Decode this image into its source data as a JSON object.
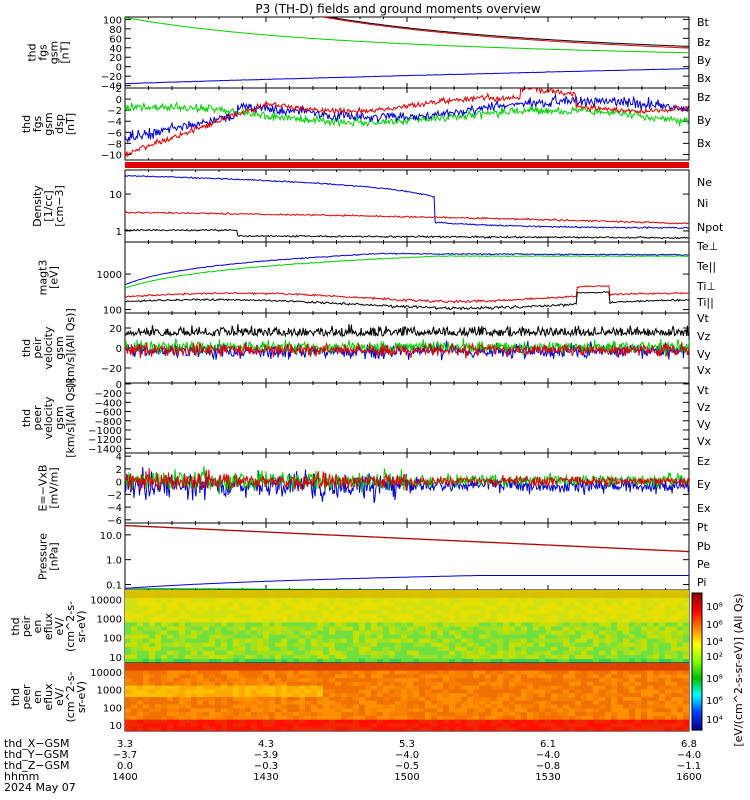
{
  "title": "P3 (TH-D) fields and ground moments overview",
  "colors": {
    "black": "#000000",
    "red": "#e00000",
    "green": "#00d000",
    "blue": "#0000d0"
  },
  "chart_data": [
    {
      "type": "line",
      "ylabel": [
        "thd",
        "fgs",
        "gsm",
        "[nT]"
      ],
      "yticks": [
        "100",
        "80",
        "60",
        "40",
        "20",
        "0",
        "−20",
        "−40"
      ],
      "ylim": [
        -45,
        105
      ],
      "series": [
        {
          "name": "Bt",
          "color": "black"
        },
        {
          "name": "Bz",
          "color": "red"
        },
        {
          "name": "By",
          "color": "green"
        },
        {
          "name": "Bx",
          "color": "blue"
        }
      ]
    },
    {
      "type": "line",
      "ylabel": [
        "thd",
        "fgs",
        "gsm",
        "dsp",
        "[nT]"
      ],
      "yticks": [
        "2",
        "0",
        "−2",
        "−4",
        "−6",
        "−8",
        "−10"
      ],
      "ylim": [
        -11,
        2
      ],
      "series": [
        {
          "name": "Bz",
          "color": "red"
        },
        {
          "name": "By",
          "color": "green"
        },
        {
          "name": "Bx",
          "color": "blue"
        }
      ]
    },
    {
      "type": "bar",
      "ylabel": [],
      "yticks": [],
      "series": []
    },
    {
      "type": "line",
      "ylabel": [
        "Density",
        "[1/cc]",
        "[cm−3]"
      ],
      "yticks": [
        "10",
        "1"
      ],
      "log": true,
      "series": [
        {
          "name": "Ne",
          "color": "red"
        },
        {
          "name": "Ni",
          "color": "black"
        },
        {
          "name": "Npot",
          "color": "blue"
        }
      ]
    },
    {
      "type": "line",
      "ylabel": [
        "magt3",
        "[eV]"
      ],
      "yticks": [
        "1000",
        "100"
      ],
      "log": true,
      "series": [
        {
          "name": "Te⊥",
          "color": "red"
        },
        {
          "name": "Te||",
          "color": "black"
        },
        {
          "name": "Ti⊥",
          "color": "red"
        },
        {
          "name": "Ti||",
          "color": "green"
        }
      ]
    },
    {
      "type": "line",
      "ylabel": [
        "thd",
        "peir",
        "velocity",
        "gsm",
        "[km/s](All Qs)]"
      ],
      "yticks": [
        "20",
        "0",
        "−20"
      ],
      "ylim": [
        -35,
        35
      ],
      "series": [
        {
          "name": "Vt",
          "color": "black"
        },
        {
          "name": "Vz",
          "color": "red"
        },
        {
          "name": "Vy",
          "color": "green"
        },
        {
          "name": "Vx",
          "color": "blue"
        }
      ]
    },
    {
      "type": "line",
      "ylabel": [
        "thd",
        "peer",
        "velocity",
        "gsm",
        "[km/s](All Qs)]"
      ],
      "yticks": [
        "0",
        "−200",
        "−400",
        "−600",
        "−800",
        "−1000",
        "−1200",
        "−1400"
      ],
      "ylim": [
        -1500,
        20
      ],
      "series": [
        {
          "name": "Vt",
          "color": "black"
        },
        {
          "name": "Vz",
          "color": "red"
        },
        {
          "name": "Vy",
          "color": "green"
        },
        {
          "name": "Vx",
          "color": "blue"
        }
      ]
    },
    {
      "type": "line",
      "ylabel": [
        "E=−VxB",
        "[mV/m]"
      ],
      "yticks": [
        "4",
        "2",
        "0",
        "−2",
        "−4",
        "−6"
      ],
      "ylim": [
        -6.5,
        4.5
      ],
      "series": [
        {
          "name": "Ez",
          "color": "red"
        },
        {
          "name": "Ey",
          "color": "green"
        },
        {
          "name": "Ex",
          "color": "blue"
        }
      ]
    },
    {
      "type": "line",
      "ylabel": [
        "Pressure",
        "[nPa]"
      ],
      "yticks": [
        "10.0",
        "1.0",
        "0.1"
      ],
      "log": true,
      "series": [
        {
          "name": "Pt",
          "color": "black"
        },
        {
          "name": "Pb",
          "color": "red"
        },
        {
          "name": "Pe",
          "color": "green"
        },
        {
          "name": "Pi",
          "color": "blue"
        }
      ]
    },
    {
      "type": "heatmap",
      "ylabel": [
        "thd",
        "peir",
        "en",
        "eflux",
        "eV/",
        "(cm^2-s-",
        "sr-eV)"
      ],
      "yticks": [
        "10000",
        "1000",
        "100",
        "10"
      ]
    },
    {
      "type": "heatmap",
      "ylabel": [
        "thd",
        "peer",
        "en",
        "eflux",
        "eV/",
        "(cm^2-s-",
        "sr-eV)"
      ],
      "yticks": [
        "10000",
        "1000",
        "100",
        "10"
      ]
    }
  ],
  "colorbar": {
    "label": "[eV/(cm^2-s-sr-eV)] (All Qs)",
    "ticks_top": [
      "10⁸",
      "10⁶",
      "10⁴",
      "10²"
    ],
    "ticks_bottom": [
      "10⁸",
      "10⁶",
      "10⁴",
      "10²"
    ]
  },
  "x_axis": {
    "ticks": [
      "3.3",
      "4.3",
      "5.3",
      "6.1",
      "6.8"
    ],
    "rows": [
      {
        "label": "thd_X−GSM",
        "values": [
          "3.3",
          "4.3",
          "5.3",
          "6.1",
          "6.8"
        ]
      },
      {
        "label": "thd_Y−GSM",
        "values": [
          "−3.7",
          "−3.9",
          "−4.0",
          "−4.0",
          "−4.0"
        ]
      },
      {
        "label": "thd_Z−GSM",
        "values": [
          "0.0",
          "−0.3",
          "−0.5",
          "−0.8",
          "−1.1"
        ]
      },
      {
        "label": "hhmm",
        "values": [
          "1400",
          "1430",
          "1500",
          "1530",
          "1600"
        ]
      }
    ],
    "date": "2024 May 07"
  }
}
